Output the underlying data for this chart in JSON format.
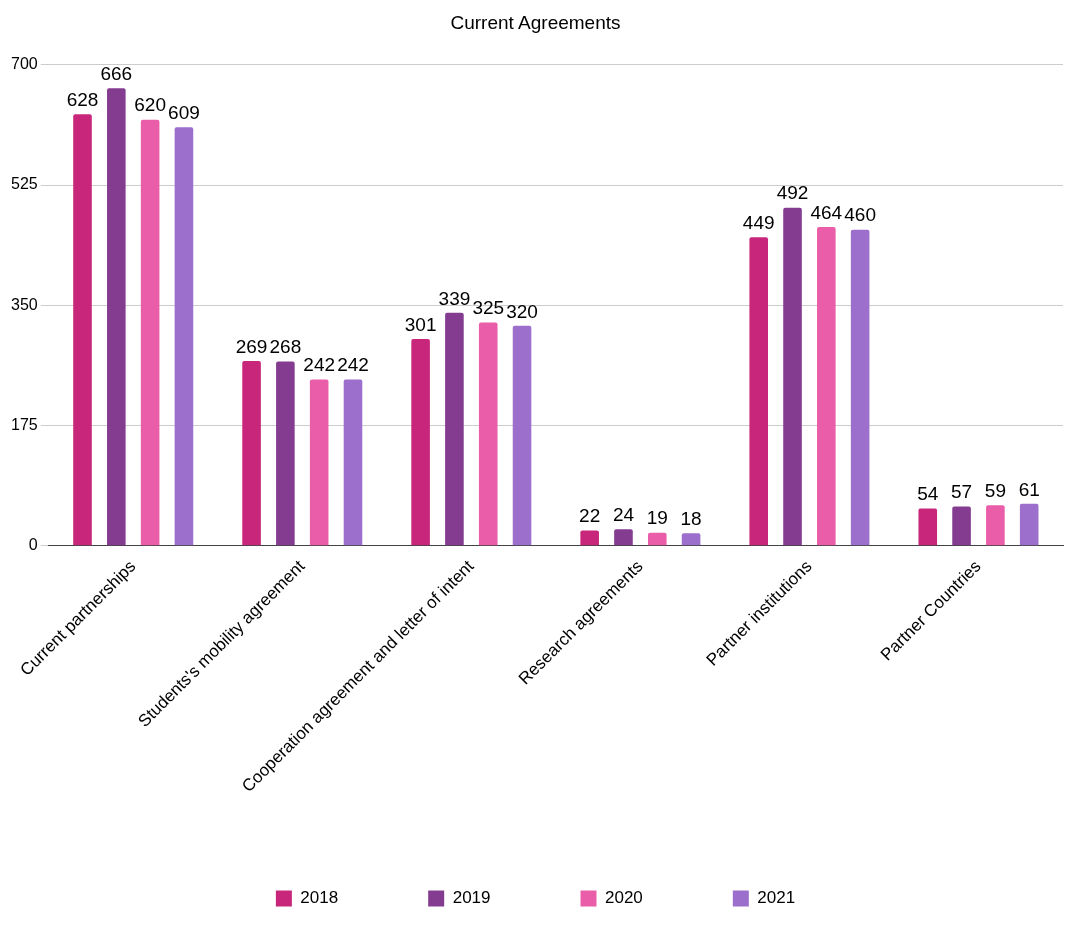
{
  "chart_data": {
    "type": "bar",
    "title": "Current Agreements",
    "categories": [
      "Current partnerships",
      "Students's mobility agreement",
      "Cooperation agreement and letter of intent",
      "Research agreements",
      "Partner institutions",
      "Partner Countries"
    ],
    "series": [
      {
        "name": "2018",
        "color": "#c8267a",
        "values": [
          628,
          269,
          301,
          22,
          449,
          54
        ]
      },
      {
        "name": "2019",
        "color": "#843c91",
        "values": [
          666,
          268,
          339,
          24,
          492,
          57
        ]
      },
      {
        "name": "2020",
        "color": "#ea5da8",
        "values": [
          620,
          242,
          325,
          19,
          464,
          59
        ]
      },
      {
        "name": "2021",
        "color": "#9b6fcb",
        "values": [
          609,
          242,
          320,
          18,
          460,
          61
        ]
      }
    ],
    "ylim": [
      0,
      700
    ],
    "yticks": [
      0,
      175,
      350,
      525,
      700
    ],
    "grid": "y",
    "legend": "bottom",
    "data_labels": true
  }
}
